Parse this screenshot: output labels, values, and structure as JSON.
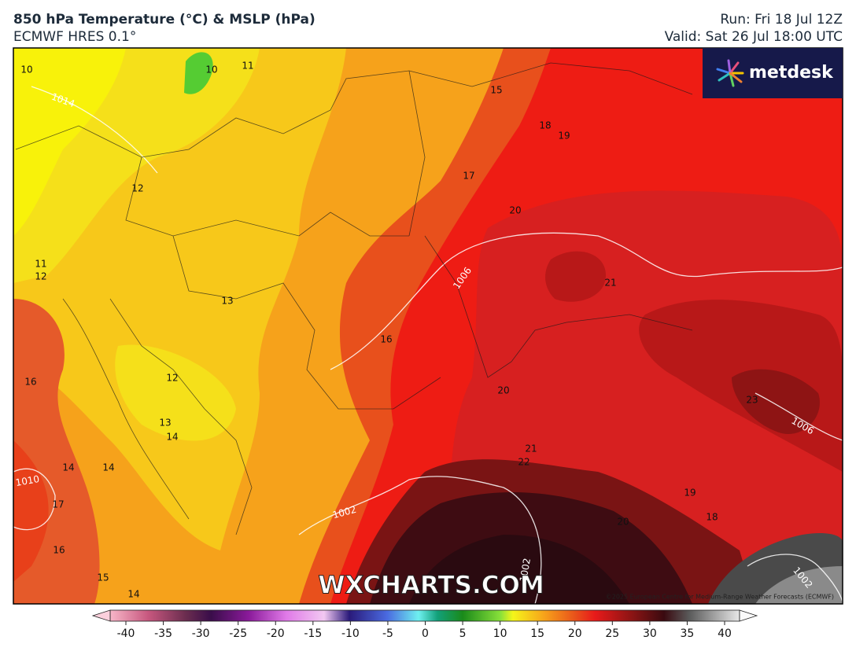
{
  "header": {
    "title": "850 hPa Temperature (°C) & MSLP (hPa)",
    "subtitle": "ECMWF HRES 0.1°",
    "run": "Run: Fri 18 Jul 12Z",
    "valid": "Valid: Sat 26 Jul 18:00 UTC"
  },
  "logo": "metdesk",
  "watermark": "WXCHARTS.COM",
  "copyright": "©2025 European Centre for Medium-Range Weather Forecasts (ECMWF)",
  "map": {
    "temperature_labels": [
      10,
      10,
      11,
      15,
      18,
      19,
      17,
      20,
      12,
      11,
      12,
      13,
      21,
      16,
      16,
      12,
      20,
      23,
      13,
      14,
      21,
      22,
      14,
      14,
      17,
      19,
      18,
      16,
      15,
      14,
      20
    ],
    "pressure_labels": [
      1006,
      1006,
      1002,
      1010,
      1002,
      1014,
      1002
    ]
  },
  "colorbar": {
    "lim": [
      -40,
      40
    ],
    "ticks": [
      -40,
      -35,
      -30,
      -25,
      -20,
      -15,
      -10,
      -5,
      0,
      5,
      10,
      15,
      20,
      25,
      30,
      35,
      40
    ]
  }
}
